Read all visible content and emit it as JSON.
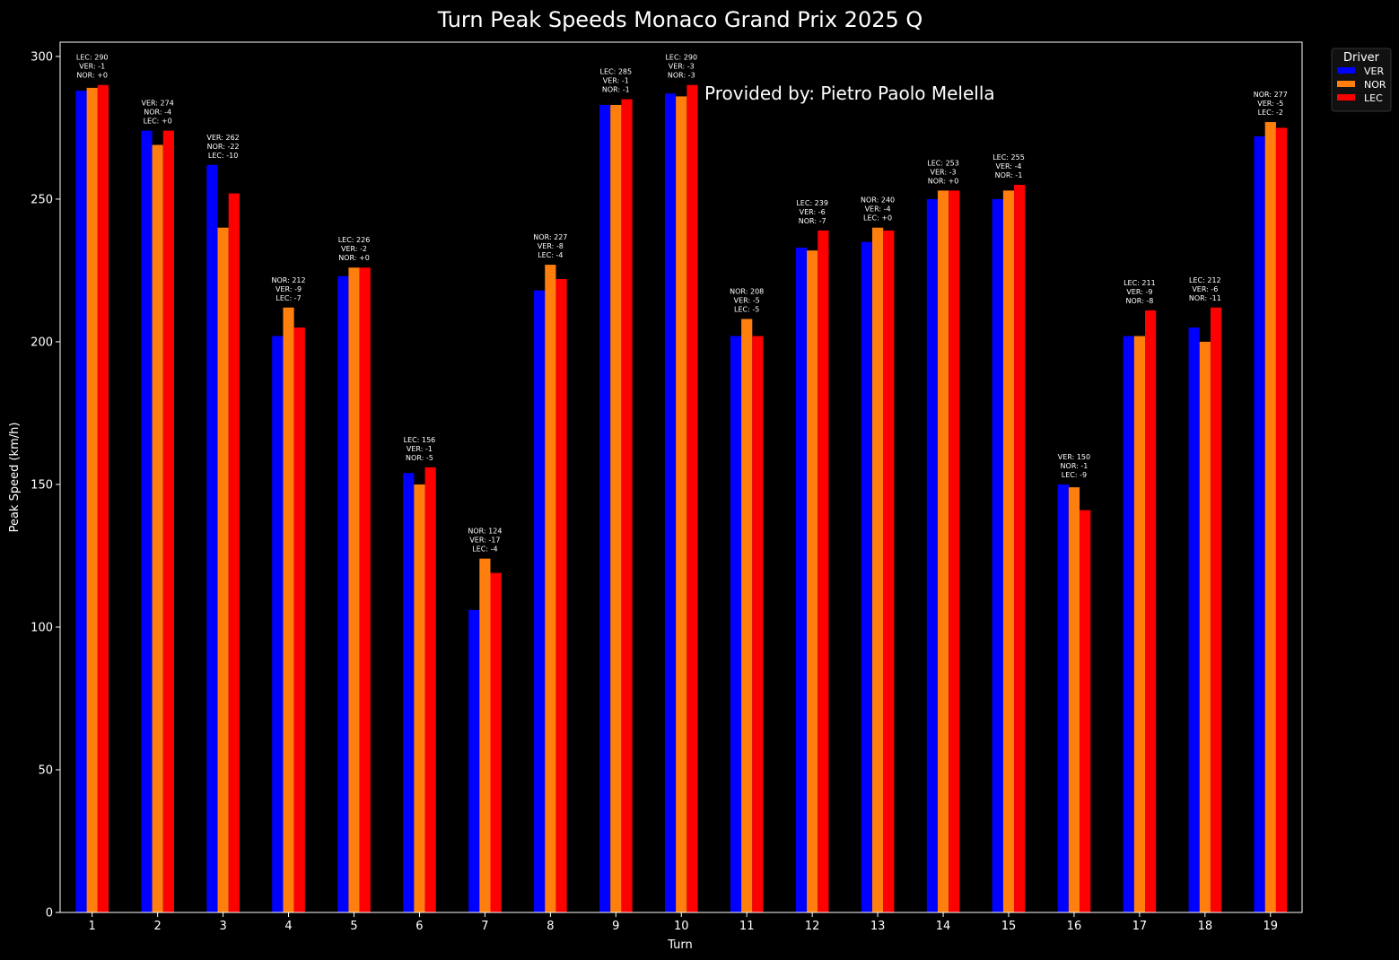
{
  "chart_data": {
    "type": "bar",
    "title": "Turn Peak Speeds Monaco Grand Prix 2025 Q",
    "xlabel": "Turn",
    "ylabel": "Peak Speed (km/h)",
    "ylim": [
      0,
      305
    ],
    "yticks": [
      0,
      50,
      100,
      150,
      200,
      250,
      300
    ],
    "grid": false,
    "legend_placement": "outside right, top",
    "legend_title": "Driver",
    "watermark": "Provided by: Pietro Paolo Melella",
    "categories": [
      "1",
      "2",
      "3",
      "4",
      "5",
      "6",
      "7",
      "8",
      "9",
      "10",
      "11",
      "12",
      "13",
      "14",
      "15",
      "16",
      "17",
      "18",
      "19"
    ],
    "series": [
      {
        "name": "VER",
        "color": "#0000ff",
        "values": [
          288,
          274,
          262,
          202,
          223,
          154,
          106,
          218,
          283,
          287,
          202,
          233,
          235,
          250,
          250,
          150,
          202,
          205,
          272
        ]
      },
      {
        "name": "NOR",
        "color": "#ff7f0e",
        "values": [
          289,
          269,
          240,
          212,
          226,
          150,
          124,
          227,
          283,
          286,
          208,
          232,
          240,
          253,
          253,
          149,
          202,
          200,
          277
        ]
      },
      {
        "name": "LEC",
        "color": "#ff0000",
        "values": [
          290,
          274,
          252,
          205,
          226,
          156,
          119,
          222,
          285,
          290,
          202,
          239,
          239,
          253,
          255,
          141,
          211,
          212,
          275
        ]
      }
    ],
    "annotations": [
      [
        "LEC: 290",
        "VER: -1",
        "NOR: +0"
      ],
      [
        "VER: 274",
        "NOR: -4",
        "LEC: +0"
      ],
      [
        "VER: 262",
        "NOR: -22",
        "LEC: -10"
      ],
      [
        "NOR: 212",
        "VER: -9",
        "LEC: -7"
      ],
      [
        "LEC: 226",
        "VER: -2",
        "NOR: +0"
      ],
      [
        "LEC: 156",
        "VER: -1",
        "NOR: -5"
      ],
      [
        "NOR: 124",
        "VER: -17",
        "LEC: -4"
      ],
      [
        "NOR: 227",
        "VER: -8",
        "LEC: -4"
      ],
      [
        "LEC: 285",
        "VER: -1",
        "NOR: -1"
      ],
      [
        "LEC: 290",
        "VER: -3",
        "NOR: -3"
      ],
      [
        "NOR: 208",
        "VER: -5",
        "LEC: -5"
      ],
      [
        "LEC: 239",
        "VER: -6",
        "NOR: -7"
      ],
      [
        "NOR: 240",
        "VER: -4",
        "LEC: +0"
      ],
      [
        "LEC: 253",
        "VER: -3",
        "NOR: +0"
      ],
      [
        "LEC: 255",
        "VER: -4",
        "NOR: -1"
      ],
      [
        "VER: 150",
        "NOR: -1",
        "LEC: -9"
      ],
      [
        "LEC: 211",
        "VER: -9",
        "NOR: -8"
      ],
      [
        "LEC: 212",
        "VER: -6",
        "NOR: -11"
      ],
      [
        "NOR: 277",
        "VER: -5",
        "LEC: -2"
      ]
    ]
  }
}
